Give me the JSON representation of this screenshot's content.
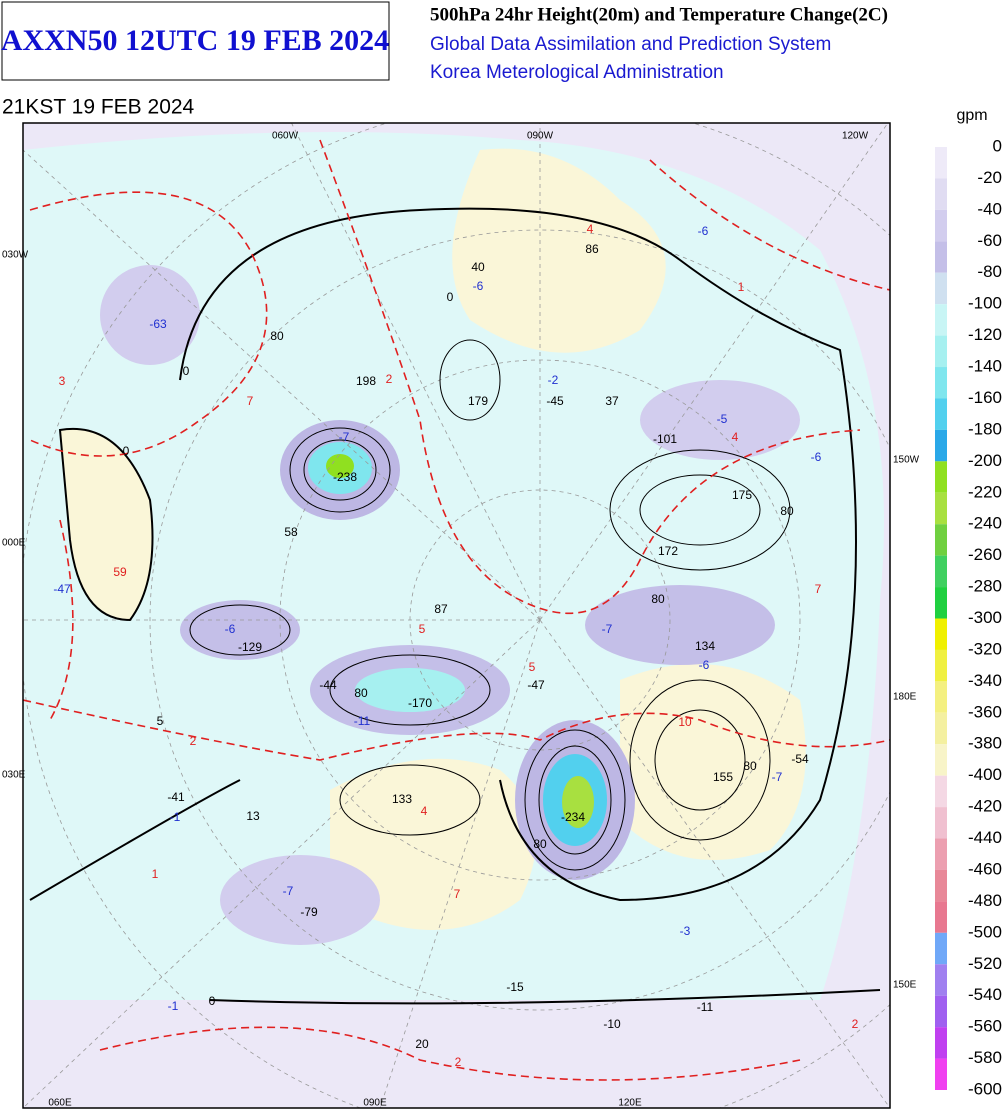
{
  "header": {
    "product": "AXXN50 12UTC 19 FEB 2024",
    "line1": "500hPa 24hr Height(20m) and Temperature Change(2C)",
    "line2": "Global Data Assimilation and Prediction System",
    "line3": "Korea Meterological Administration",
    "valid": "21KST 19 FEB 2024"
  },
  "map": {
    "top_lon": [
      "060W",
      "090W",
      "120W"
    ],
    "bottom_lon": [
      "060E",
      "090E",
      "120E"
    ],
    "left_lon": [
      "030W",
      "000E",
      "030E"
    ],
    "right_lon": [
      "150W",
      "180E",
      "150E"
    ],
    "height_labels": [
      "40",
      "86",
      "198",
      "179",
      "-45",
      "37",
      "-101",
      "175",
      "172",
      "-238",
      "58",
      "87",
      "-129",
      "134",
      "-47",
      "-170",
      "-44",
      "155",
      "-54",
      "133",
      "-234",
      "5",
      "-41",
      "13",
      "-79",
      "-15",
      "-10",
      "-11",
      "20"
    ],
    "contour_labels": [
      "80",
      "80",
      "80",
      "80",
      "80",
      "80",
      "0",
      "0",
      "0",
      "0"
    ],
    "cooling_labels": [
      "-6",
      "-6",
      "-2",
      "-5",
      "-6",
      "-7",
      "-6",
      "-7",
      "-6",
      "-11",
      "-7",
      "-1",
      "-7",
      "-3",
      "-1",
      "-47",
      "-63"
    ],
    "warming_labels": [
      "4",
      "1",
      "3",
      "7",
      "2",
      "4",
      "59",
      "5",
      "5",
      "7",
      "10",
      "4",
      "1",
      "7",
      "2",
      "2",
      "2"
    ]
  },
  "colorbar": {
    "unit": "gpm",
    "ticks": [
      0,
      -20,
      -40,
      -60,
      -80,
      -100,
      -120,
      -140,
      -160,
      -180,
      -200,
      -220,
      -240,
      -260,
      -280,
      -300,
      -320,
      -340,
      -360,
      -380,
      -400,
      -420,
      -440,
      -460,
      -480,
      -500,
      -520,
      -540,
      -560,
      -580,
      -600
    ],
    "colors": [
      "#eeeaf8",
      "#e0dcf2",
      "#d2cdee",
      "#c4bfe8",
      "#cfe0f0",
      "#c8f5f5",
      "#a6f0f0",
      "#7fe6ee",
      "#52d0ee",
      "#2aa8e8",
      "#90e020",
      "#a8e040",
      "#70d040",
      "#40d060",
      "#20d040",
      "#f0f000",
      "#f0f040",
      "#f4f080",
      "#f4f0a0",
      "#f8f4c8",
      "#f4d8e4",
      "#f0c0d0",
      "#ec9fb0",
      "#e88898",
      "#e87890",
      "#70a8f8",
      "#a080f0",
      "#a060f0",
      "#c040f0",
      "#f040f0"
    ]
  }
}
